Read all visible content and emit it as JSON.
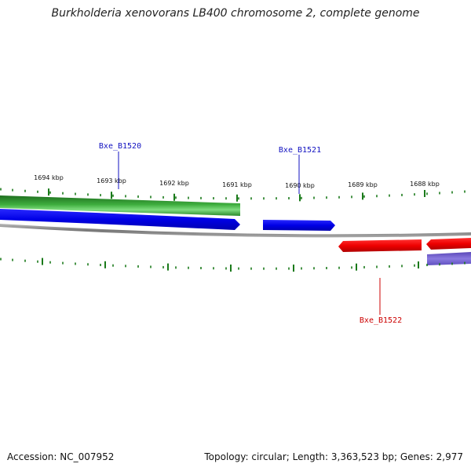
{
  "title": "Burkholderia xenovorans LB400 chromosome 2, complete genome",
  "footer": {
    "accession": "Accession: NC_007952",
    "summary": "Topology: circular; Length: 3,363,523 bp; Genes: 2,977"
  },
  "scale": {
    "tick_color": "#1a7a1a",
    "labels": [
      "1694 kbp",
      "1693 kbp",
      "1692 kbp",
      "1691 kbp",
      "1690 kbp",
      "1689 kbp",
      "1688 kbp"
    ]
  },
  "genes": [
    {
      "name": "Bxe_B1520",
      "color": "#1010c0",
      "strand": "forward"
    },
    {
      "name": "Bxe_B1521",
      "color": "#1010c0",
      "strand": "forward"
    },
    {
      "name": "Bxe_B1522",
      "color": "#cc0000",
      "strand": "reverse"
    }
  ],
  "tracks": {
    "gc_content_color": "#2e9a2e",
    "forward_cds_color": "#0000ee",
    "reverse_cds_color": "#ee0000",
    "backbone_color": "#888888",
    "gc_skew_color": "#7060c8"
  }
}
